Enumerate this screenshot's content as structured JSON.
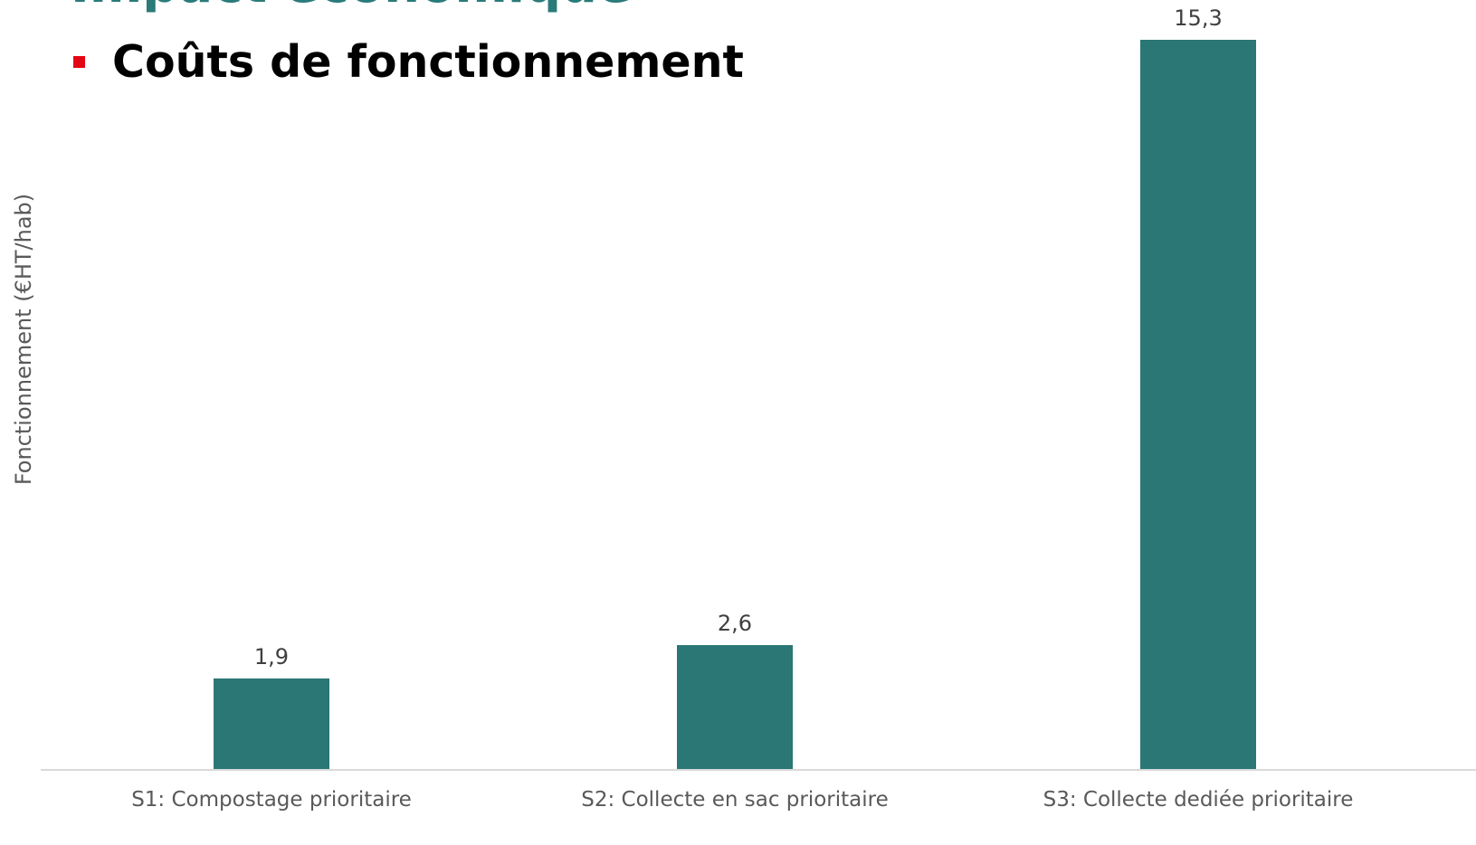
{
  "header": {
    "section_title": "Impact économique",
    "subtitle": "Coûts de fonctionnement"
  },
  "colors": {
    "bar": "#2a7776",
    "accent_title": "#2a7b7a",
    "bullet": "#e30613",
    "axis": "#d9d9d9",
    "text": "#595959"
  },
  "chart_data": {
    "type": "bar",
    "categories": [
      "S1: Compostage prioritaire",
      "S2: Collecte en sac prioritaire",
      "S3: Collecte dediée prioritaire"
    ],
    "values": [
      1.9,
      2.6,
      15.3
    ],
    "data_labels": [
      "1,9",
      "2,6",
      "15,3"
    ],
    "ylabel": "Fonctionnement (€HT/hab)",
    "ylim": [
      0,
      15.3
    ],
    "grid": false,
    "legend": "none"
  }
}
